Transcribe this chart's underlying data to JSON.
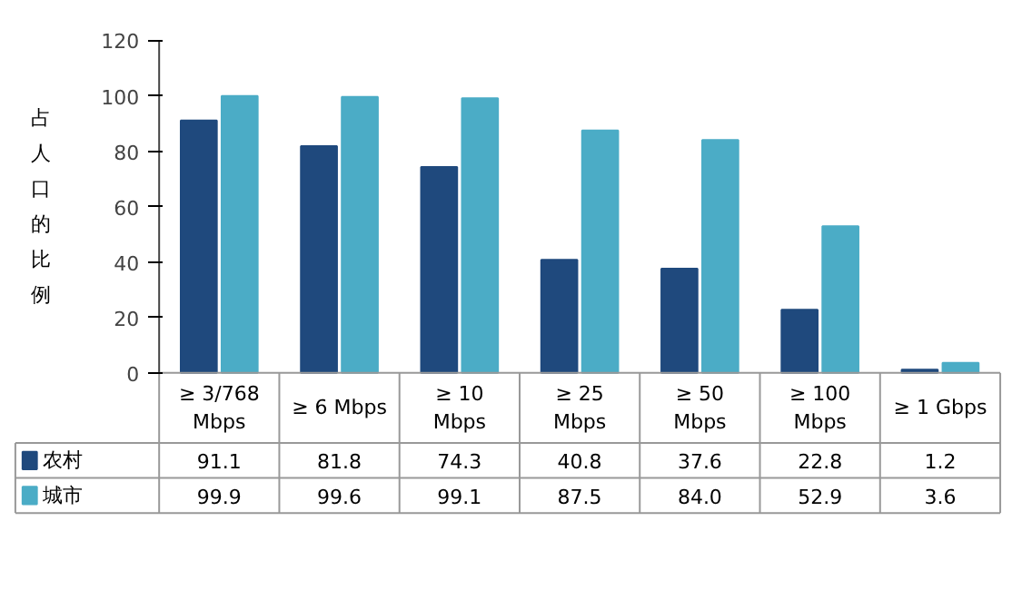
{
  "chart_data": {
    "type": "bar",
    "ylabel": "占人口的比例",
    "categories": [
      "≥ 3/768\nMbps",
      "≥ 6 Mbps",
      "≥ 10\nMbps",
      "≥ 25\nMbps",
      "≥ 50\nMbps",
      "≥ 100\nMbps",
      "≥ 1 Gbps"
    ],
    "series": [
      {
        "name": "农村",
        "color": "#1f497d",
        "values": [
          91.1,
          81.8,
          74.3,
          40.8,
          37.6,
          22.8,
          1.2
        ],
        "value_labels": [
          "91.1",
          "81.8",
          "74.3",
          "40.8",
          "37.6",
          "22.8",
          "1.2"
        ]
      },
      {
        "name": "城市",
        "color": "#4bacc6",
        "values": [
          99.9,
          99.6,
          99.1,
          87.5,
          84.0,
          52.9,
          3.6
        ],
        "value_labels": [
          "99.9",
          "99.6",
          "99.1",
          "87.5",
          "84.0",
          "52.9",
          "3.6"
        ]
      }
    ],
    "ylim": [
      0,
      120
    ],
    "yticks": [
      0,
      20,
      40,
      60,
      80,
      100,
      120
    ],
    "grid": false,
    "legend": "bottom left"
  }
}
